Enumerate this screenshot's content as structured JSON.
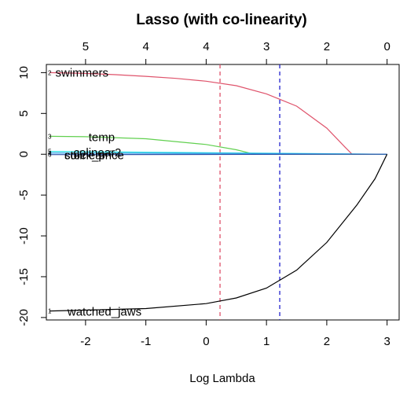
{
  "chart_data": {
    "type": "line",
    "title": "Lasso (with co-linearity)",
    "xlabel": "Log Lambda",
    "ylabel": "",
    "xlim": [
      -2.65,
      3.2
    ],
    "ylim": [
      -20.3,
      11.0
    ],
    "x_ticks": [
      -2,
      -1,
      0,
      1,
      2,
      3
    ],
    "x_tick_labels": [
      "-2",
      "-1",
      "0",
      "1",
      "2",
      "3"
    ],
    "y_ticks": [
      -20,
      -15,
      -10,
      -5,
      0,
      5,
      10
    ],
    "y_tick_labels": [
      "-20",
      "-15",
      "-10",
      "-5",
      "0",
      "5",
      "10"
    ],
    "top_axis": {
      "ticks": [
        -2,
        -1,
        0,
        1,
        2,
        3
      ],
      "tick_labels": [
        "5",
        "4",
        "4",
        "3",
        "2",
        "0"
      ]
    },
    "vlines": [
      {
        "x": 0.23,
        "color": "#DF536B",
        "style": "dashed"
      },
      {
        "x": 1.22,
        "color": "#2222CC",
        "style": "dashed"
      }
    ],
    "grid": false,
    "legend": "none",
    "series": [
      {
        "name": "swimmers",
        "index_label": "2",
        "color": "#DF536B",
        "x": [
          -2.6,
          -2.0,
          -1.5,
          -1.0,
          -0.5,
          0.0,
          0.5,
          1.0,
          1.5,
          2.0,
          2.3,
          2.42,
          3.0
        ],
        "values": [
          10.0,
          9.9,
          9.75,
          9.55,
          9.3,
          8.95,
          8.4,
          7.4,
          5.9,
          3.2,
          0.9,
          0.0,
          0.0
        ]
      },
      {
        "name": "temp",
        "index_label": "3",
        "color": "#61D04F",
        "x": [
          -2.6,
          -2.0,
          -1.0,
          0.0,
          0.5,
          0.8,
          3.0
        ],
        "values": [
          2.2,
          2.15,
          1.9,
          1.2,
          0.55,
          0.0,
          0.0
        ]
      },
      {
        "name": "colinear2",
        "index_label": "5",
        "color": "#28E2E5",
        "x": [
          -2.6,
          3.0
        ],
        "values": [
          0.35,
          0.0
        ]
      },
      {
        "name": "colinear",
        "index_label": "4",
        "color": "#2297E6",
        "x": [
          -2.6,
          0.5,
          3.0
        ],
        "values": [
          0.15,
          0.1,
          0.0
        ]
      },
      {
        "name": "stock_price",
        "index_label": "6",
        "color": "#3355AA",
        "x": [
          -2.6,
          3.0
        ],
        "values": [
          -0.05,
          0.0
        ]
      },
      {
        "name": "watched_jaws",
        "index_label": "1",
        "color": "#000000",
        "x": [
          -2.6,
          -2.0,
          -1.0,
          0.0,
          0.5,
          1.0,
          1.5,
          2.0,
          2.5,
          2.8,
          3.0
        ],
        "values": [
          -19.2,
          -19.1,
          -18.9,
          -18.3,
          -17.6,
          -16.4,
          -14.2,
          -10.8,
          -6.2,
          -3.0,
          0.0
        ]
      }
    ],
    "label_positions": {
      "swimmers": {
        "x": -2.5,
        "y": 10.0
      },
      "temp": {
        "x": -1.95,
        "y": 2.1
      },
      "colinear2": {
        "x": -2.2,
        "y": 0.2
      },
      "colinear": {
        "x": -2.35,
        "y": -0.1
      },
      "stock_price": {
        "x": -2.35,
        "y": -0.1
      },
      "watched_jaws": {
        "x": -2.3,
        "y": -19.3
      }
    }
  }
}
